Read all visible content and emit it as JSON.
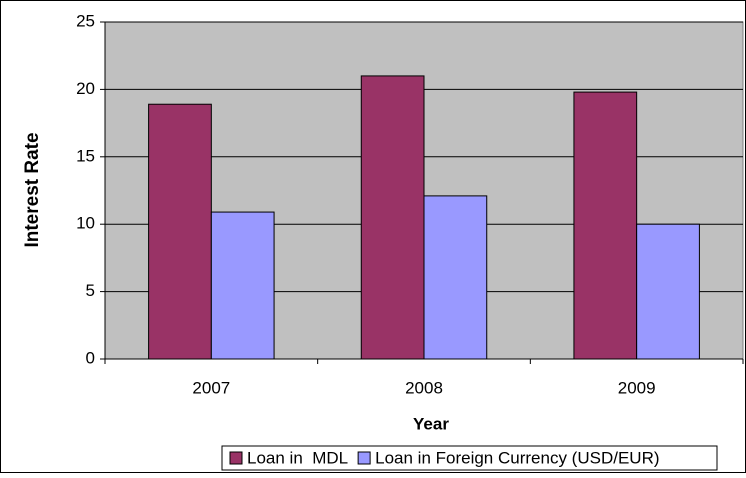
{
  "chart_data": {
    "type": "bar",
    "categories": [
      "2007",
      "2008",
      "2009"
    ],
    "series": [
      {
        "name": "Loan in  MDL",
        "color": "#993366",
        "values": [
          18.9,
          21.0,
          19.8
        ]
      },
      {
        "name": "Loan in Foreign Currency (USD/EUR)",
        "color": "#9999ff",
        "values": [
          10.9,
          12.1,
          10.0
        ]
      }
    ],
    "xlabel": "Year",
    "ylabel": "Interest Rate",
    "ylim": [
      0,
      25
    ],
    "yticks": [
      0,
      5,
      10,
      15,
      20,
      25
    ],
    "grid": true,
    "legend": "bottom"
  }
}
